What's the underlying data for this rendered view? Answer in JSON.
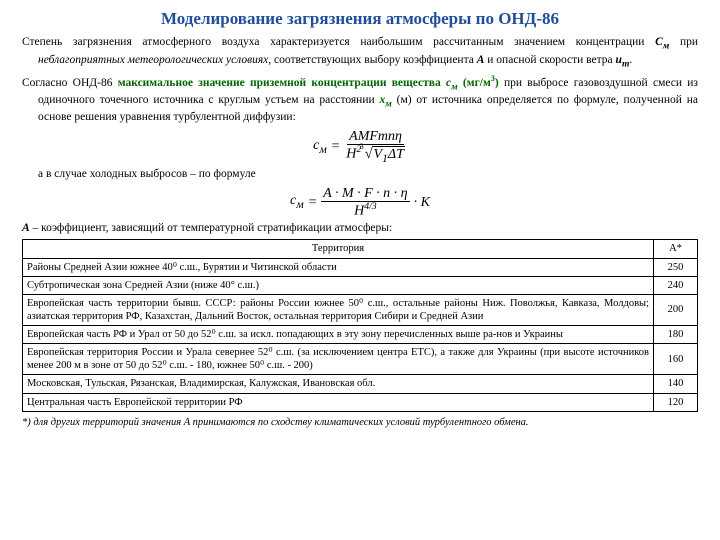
{
  "title": "Моделирование загрязнения атмосферы по ОНД-86",
  "p1_a": "Степень загрязнения атмосферного воздуха характеризуется наибольшим рассчитанным значением концентрации ",
  "p1_cm": "С",
  "p1_cmsub": "м",
  "p1_b": " при ",
  "p1_it1": "неблагоприятных метеорологических условиях",
  "p1_c": ", соответствующих выбору коэффициента ",
  "p1_A": "A",
  "p1_d": " и опасной скорости ветра ",
  "p1_u": "u",
  "p1_usub": "m",
  "p1_e": ".",
  "p2_a": "Согласно ОНД-86 ",
  "p2_green": "максимальное значение приземной концентрации вещества ",
  "p2_cm": "с",
  "p2_cmsub": "м",
  "p2_units": " (мг/м",
  "p2_sup3": "3",
  "p2_unitsend": ")",
  "p2_b": " при выбросе газовоздушной смеси из одиночного точечного источника с круглым устьем на расстоянии ",
  "p2_x": "x",
  "p2_xsub": "м",
  "p2_c": " (м) от источника определяется по формуле, полученной на основе решения уравнения турбулентной диффузии:",
  "formula1": {
    "lhs": "c",
    "lhs_sub": "м",
    "eq": "=",
    "num": "AMFmnη",
    "den_a": "H",
    "den_a_sup": "2",
    "den_root_idx": "3",
    "den_root_body_a": "V",
    "den_root_sub": "1",
    "den_root_body_b": "ΔT"
  },
  "mid": "а в случае холодных выбросов – по формуле",
  "formula2": {
    "lhs": "c",
    "lhs_sub": "м",
    "eq": "=",
    "num": "A · M · F · n · η",
    "den": "H",
    "den_sup": "4/3",
    "tail": "· K"
  },
  "a_note_a": "A",
  "a_note_b": " – коэффициент, зависящий от температурной стратификации атмосферы:",
  "table": {
    "columns": [
      "Территория",
      "A*"
    ],
    "col_widths": [
      "auto",
      "44px"
    ],
    "rows": [
      [
        "Районы Средней Азии южнее 40⁰ с.ш., Бурятии и Читинской области",
        "250"
      ],
      [
        "Субтропическая зона Средней Азии (ниже 40° с.ш.)",
        "240"
      ],
      [
        "Европейская часть территории бывш. СССР: районы России южнее 50⁰ с.ш., остальные районы Ниж. Поволжья, Кавказа, Молдовы; азиатская территория РФ, Казахстан, Дальний Восток, остальная территория Сибири и Средней Азии",
        "200"
      ],
      [
        "Европейская часть РФ и Урал от 50 до 52⁰ с.ш. за искл. попадающих в эту зону перечисленных выше ра-нов и Украины",
        "180"
      ],
      [
        "Европейская территория России и Урала севернее 52⁰ с.ш. (за исключением центра ЕТС), а также для Украины (при высоте источников менее 200 м в зоне от 50 до 52⁰ с.ш. - 180, южнее 50⁰ с.ш. - 200)",
        "160"
      ],
      [
        "Московская, Тульская, Рязанская, Владимирская, Калужская, Ивановская обл.",
        "140"
      ],
      [
        "Центральная часть Европейской территории РФ",
        "120"
      ]
    ],
    "border_color": "#000000",
    "header_bg": "#ffffff"
  },
  "footnote": "*) для других территорий значения A принимаются по сходству климатических условий турбулентного обмена.",
  "colors": {
    "title": "#1f4e9c",
    "green": "#006400",
    "text": "#000000",
    "bg": "#ffffff"
  }
}
